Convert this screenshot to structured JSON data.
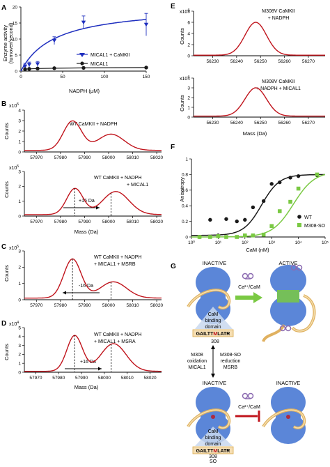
{
  "panels": {
    "A": {
      "letter": "A",
      "ylabel_line1": "Enzyme activity",
      "ylabel_line2": "(turnover/second)",
      "xlabel": "NADPH (μM)",
      "legend": [
        "MICAL1 + CaMKII",
        "MICAL1"
      ]
    },
    "B1": {
      "letter": "B",
      "ylabel": "Counts",
      "exp": "x10",
      "exp_power": "5",
      "annotation": [
        "WT CaMKII + NADPH"
      ]
    },
    "B2": {
      "ylabel": "Counts",
      "exp": "x10",
      "exp_power": "5",
      "xlabel": "Mass (Da)",
      "annotation": [
        "WT CaMKII + NADPH",
        "+ MICAL1"
      ],
      "arrow_label": "+16 Da"
    },
    "C": {
      "letter": "C",
      "ylabel": "Counts",
      "exp": "x10",
      "exp_power": "5",
      "annotation": [
        "WT CaMKII + NADPH",
        "+ MICAL1 + MSRB"
      ],
      "arrow_label": "-16 Da"
    },
    "D": {
      "letter": "D",
      "ylabel": "Counts",
      "exp": "x10",
      "exp_power": "4",
      "xlabel": "Mass (Da)",
      "annotation": [
        "WT CaMKII + NADPH",
        "+ MICAL1 + MSRA"
      ],
      "arrow_label": "+16 Da"
    },
    "E1": {
      "letter": "E",
      "ylabel": "Counts",
      "exp": "x10",
      "exp_power": "4",
      "annotation": [
        "M308V CaMKII",
        "+ NADPH"
      ]
    },
    "E2": {
      "ylabel": "Counts",
      "exp": "x10",
      "exp_power": "4",
      "xlabel": "Mass (Da)",
      "annotation": [
        "M308V CaMKII",
        "+ NADPH + MICAL1"
      ]
    },
    "F": {
      "letter": "F",
      "ylabel": "Anisotropy",
      "xlabel": "CaM (nM)",
      "legend": [
        "WT",
        "M308-SO"
      ]
    },
    "G": {
      "letter": "G",
      "top_left": "INACTIVE",
      "top_right": "ACTIVE",
      "bottom_left": "INACTIVE",
      "bottom_right": "INACTIVE",
      "cam_label": "Ca²⁺/CaM",
      "domain_label": [
        "CaM",
        "binding",
        "domain"
      ],
      "seq_pre": "GAILTT",
      "seq_m": "M",
      "seq_post": "LATR",
      "residue": "308",
      "so": "SO",
      "left_text": [
        "M308",
        "oxidation",
        "MICAL1"
      ],
      "right_text": [
        "M308-SO",
        "reduction",
        "MSRB"
      ]
    }
  },
  "colors": {
    "red": "#c0141c",
    "blue": "#1f2fbf",
    "green": "#7ac943",
    "body": "#5b86d8",
    "dark": "#1a1a1a"
  },
  "chart_data": [
    {
      "panel": "A",
      "type": "line",
      "xlabel": "NADPH (μM)",
      "ylabel": "Enzyme activity (turnover/second)",
      "xlim": [
        0,
        150
      ],
      "ylim": [
        0,
        20
      ],
      "xticks": [
        0,
        50,
        100,
        150
      ],
      "yticks": [
        0,
        5,
        10,
        15,
        20
      ],
      "series": [
        {
          "name": "MICAL1 + CaMKII",
          "color": "#1f2fbf",
          "marker": "triangle-down",
          "x": [
            5,
            10,
            20,
            40,
            75,
            150
          ],
          "values": [
            1.5,
            2.0,
            2.2,
            9.5,
            15.2,
            14.5
          ],
          "err": [
            1.0,
            0.8,
            0.8,
            1.2,
            2.0,
            3.5
          ],
          "fit": {
            "model": "michaelis-menten",
            "vmax": 20.5,
            "km": 41
          }
        },
        {
          "name": "MICAL1",
          "color": "#1a1a1a",
          "marker": "circle",
          "x": [
            5,
            10,
            20,
            40,
            75,
            150
          ],
          "values": [
            0.6,
            0.7,
            0.8,
            0.9,
            1.0,
            1.1
          ]
        }
      ]
    },
    {
      "panel": "B1",
      "type": "line",
      "xlabel": "",
      "ylabel": "Counts (x10^5)",
      "xlim": [
        57965,
        58022
      ],
      "ylim": [
        0,
        4
      ],
      "xticks": [
        57970,
        57980,
        57990,
        58000,
        58010,
        58020
      ],
      "yticks": [
        0,
        1,
        2,
        3,
        4
      ],
      "series": [
        {
          "color": "#c0141c",
          "peaks": [
            {
              "mass": 57985,
              "height": 2.8,
              "width": 3.8
            },
            {
              "mass": 58001,
              "height": 1.55,
              "width": 5.5
            }
          ],
          "baseline": 0.15
        }
      ]
    },
    {
      "panel": "B2",
      "type": "line",
      "xlabel": "Mass (Da)",
      "ylabel": "Counts (x10^5)",
      "xlim": [
        57965,
        58022
      ],
      "ylim": [
        0,
        3
      ],
      "xticks": [
        57970,
        57980,
        57990,
        58000,
        58010,
        58020
      ],
      "yticks": [
        0,
        1,
        2,
        3
      ],
      "series": [
        {
          "color": "#c0141c",
          "peaks": [
            {
              "mass": 57986,
              "height": 1.75,
              "width": 3.4
            },
            {
              "mass": 58003,
              "height": 1.55,
              "width": 5.5
            }
          ],
          "baseline": 0.1
        }
      ],
      "markers": [
        57986,
        58001
      ]
    },
    {
      "panel": "C",
      "type": "line",
      "xlabel": "",
      "ylabel": "Counts (x10^5)",
      "xlim": [
        57965,
        58022
      ],
      "ylim": [
        0,
        3
      ],
      "xticks": [
        57970,
        57980,
        57990,
        58000,
        58010,
        58020
      ],
      "yticks": [
        0,
        1,
        2,
        3
      ],
      "series": [
        {
          "color": "#c0141c",
          "peaks": [
            {
              "mass": 57985,
              "height": 2.4,
              "width": 3.6
            },
            {
              "mass": 58002,
              "height": 1.0,
              "width": 5.5
            }
          ],
          "baseline": 0.1
        }
      ],
      "markers": [
        57985,
        58001
      ]
    },
    {
      "panel": "D",
      "type": "line",
      "xlabel": "Mass (Da)",
      "ylabel": "Counts (x10^4)",
      "xlim": [
        57965,
        58025
      ],
      "ylim": [
        0,
        5
      ],
      "xticks": [
        57970,
        57980,
        57990,
        58000,
        58010,
        58020
      ],
      "yticks": [
        0,
        1,
        2,
        3,
        4,
        5
      ],
      "series": [
        {
          "color": "#c0141c",
          "peaks": [
            {
              "mass": 57987,
              "height": 4.0,
              "width": 3.4
            },
            {
              "mass": 58004,
              "height": 3.1,
              "width": 5.5
            }
          ],
          "baseline": 0.1
        }
      ],
      "markers": [
        57987,
        58003
      ]
    },
    {
      "panel": "E1",
      "type": "line",
      "xlabel": "",
      "ylabel": "Counts (x10^4)",
      "xlim": [
        56222,
        56277
      ],
      "ylim": [
        0,
        8
      ],
      "xticks": [
        56230,
        56240,
        56250,
        56260,
        56270
      ],
      "yticks": [
        0,
        2,
        4,
        6,
        8
      ],
      "series": [
        {
          "color": "#c0141c",
          "peaks": [
            {
              "mass": 56248,
              "height": 5.9,
              "width": 4.5
            }
          ],
          "baseline": 0.1
        }
      ]
    },
    {
      "panel": "E2",
      "type": "line",
      "xlabel": "Mass (Da)",
      "ylabel": "Counts (x10^4)",
      "xlim": [
        56222,
        56277
      ],
      "ylim": [
        0,
        4
      ],
      "xticks": [
        56230,
        56240,
        56250,
        56260,
        56270
      ],
      "yticks": [
        0,
        1,
        2,
        3,
        4
      ],
      "series": [
        {
          "color": "#c0141c",
          "peaks": [
            {
              "mass": 56248,
              "height": 2.9,
              "width": 4.5
            }
          ],
          "baseline": 0.1
        }
      ]
    },
    {
      "panel": "F",
      "type": "scatter",
      "xlabel": "CaM (nM)",
      "ylabel": "Anisotropy",
      "xscale": "log",
      "xlim": [
        1,
        100000
      ],
      "ylim": [
        0,
        1.0
      ],
      "xticks": [
        1,
        10,
        100,
        1000,
        10000,
        100000
      ],
      "xticklabels": [
        "10⁰",
        "10¹",
        "10²",
        "10³",
        "10⁴",
        "10⁵"
      ],
      "yticks": [
        0,
        0.2,
        0.4,
        0.6,
        0.8,
        1.0
      ],
      "series": [
        {
          "name": "WT",
          "color": "#1a1a1a",
          "marker": "circle",
          "x": [
            2,
            5,
            10,
            20,
            50,
            100,
            200,
            500,
            1000,
            2000,
            5000,
            10000,
            50000
          ],
          "values": [
            0.0,
            0.22,
            0.02,
            0.23,
            0.2,
            0.22,
            0.38,
            0.46,
            0.68,
            0.7,
            0.76,
            0.78,
            0.79
          ],
          "fit": {
            "bottom": 0.02,
            "top": 0.8,
            "ec50": 420,
            "hill": 1.3
          }
        },
        {
          "name": "M308-SO",
          "color": "#7ac943",
          "marker": "square",
          "x": [
            2,
            5,
            10,
            20,
            50,
            100,
            200,
            500,
            1000,
            2000,
            5000,
            10000,
            50000
          ],
          "values": [
            0.0,
            0.0,
            0.01,
            0.0,
            0.0,
            0.02,
            0.02,
            0.03,
            0.14,
            0.33,
            0.45,
            0.62,
            0.8
          ],
          "fit": {
            "bottom": 0.0,
            "top": 0.84,
            "ec50": 6500,
            "hill": 1.1
          }
        }
      ]
    }
  ]
}
